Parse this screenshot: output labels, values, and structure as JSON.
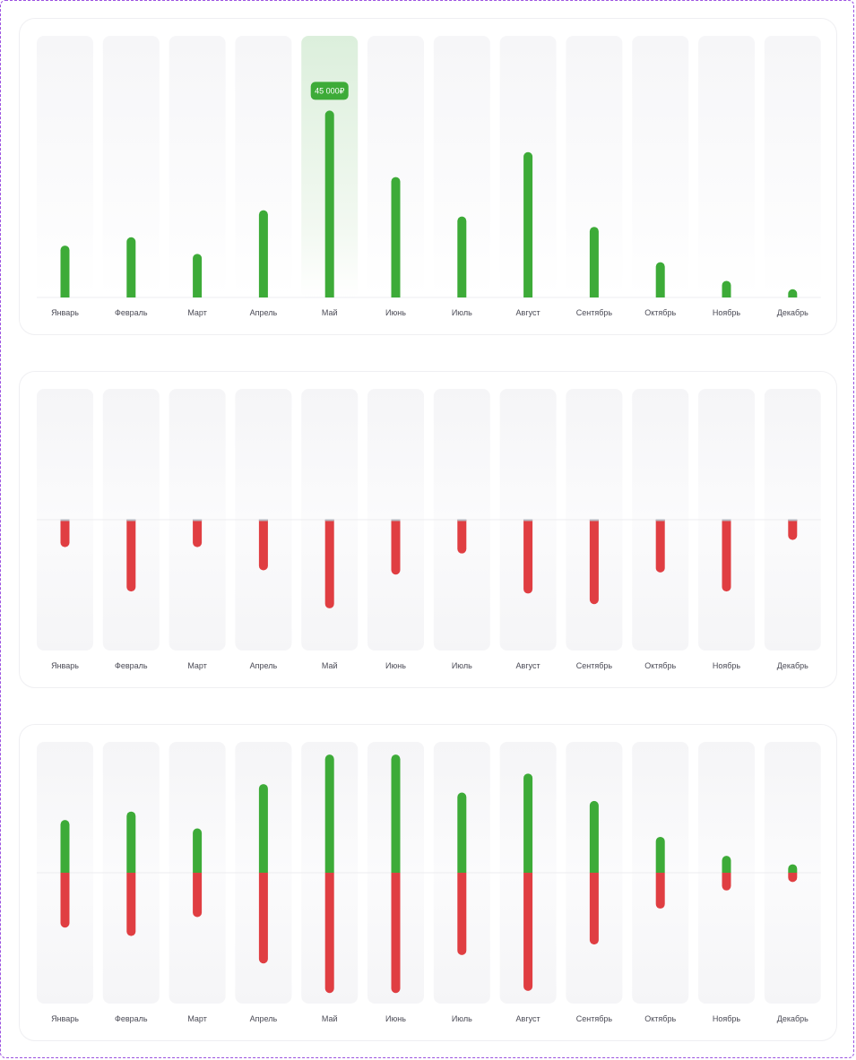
{
  "colors": {
    "income": "#3dab38",
    "expense": "#e03e42",
    "highlight": "#dcefdc",
    "tooltip_bg": "#3dab38"
  },
  "months": [
    "Январь",
    "Февраль",
    "Март",
    "Апрель",
    "Май",
    "Июнь",
    "Июль",
    "Август",
    "Сентябрь",
    "Октябрь",
    "Ноябрь",
    "Декабрь"
  ],
  "chart_data": [
    {
      "type": "bar",
      "categories": [
        "Январь",
        "Февраль",
        "Март",
        "Апрель",
        "Май",
        "Июнь",
        "Июль",
        "Август",
        "Сентябрь",
        "Октябрь",
        "Ноябрь",
        "Декабрь"
      ],
      "series": [
        {
          "values": [
            12500,
            14500,
            10500,
            21000,
            45000,
            29000,
            19500,
            35000,
            17000,
            8500,
            4000,
            2000
          ]
        }
      ],
      "ylim": [
        0,
        63000
      ],
      "highlight_index": 4,
      "tooltip": "45 000₽",
      "grid": false
    },
    {
      "type": "bar",
      "categories": [
        "Январь",
        "Февраль",
        "Март",
        "Апрель",
        "Май",
        "Июнь",
        "Июль",
        "Август",
        "Сентябрь",
        "Октябрь",
        "Ноябрь",
        "Декабрь"
      ],
      "series": [
        {
          "values": [
            -6500,
            -17000,
            -6500,
            -12000,
            -21000,
            -13000,
            -8000,
            -17500,
            -20000,
            -12500,
            -17000,
            -4800
          ]
        }
      ],
      "ylim": [
        -31000,
        31000
      ],
      "grid": false
    },
    {
      "type": "bar",
      "categories": [
        "Январь",
        "Февраль",
        "Март",
        "Апрель",
        "Май",
        "Июнь",
        "Июль",
        "Август",
        "Сентябрь",
        "Октябрь",
        "Ноябрь",
        "Декабрь"
      ],
      "series": [
        {
          "values": [
            12500,
            14500,
            10500,
            21000,
            28000,
            28000,
            19000,
            23500,
            17000,
            8500,
            4000,
            2000
          ]
        },
        {
          "values": [
            -13000,
            -15000,
            -10500,
            -21500,
            -28500,
            -28500,
            -19500,
            -28000,
            -17000,
            -8500,
            -4200,
            -2200
          ]
        }
      ],
      "ylim": [
        -31000,
        31000
      ],
      "grid": false
    }
  ]
}
